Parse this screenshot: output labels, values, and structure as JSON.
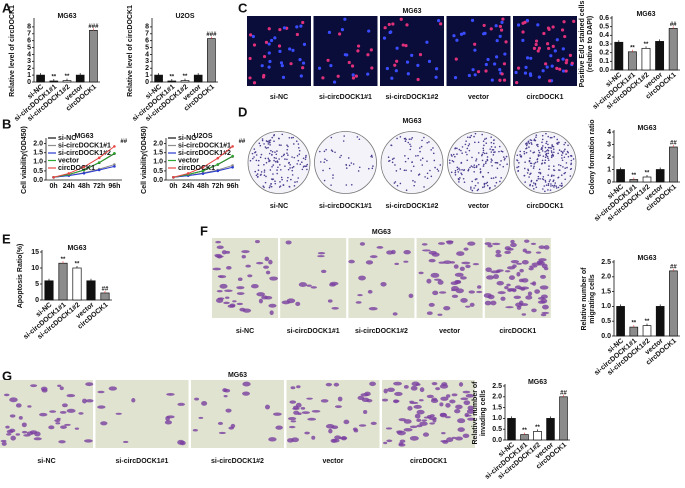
{
  "panel_letters": [
    "A",
    "B",
    "C",
    "D",
    "E",
    "F",
    "G"
  ],
  "chart_data": [
    {
      "type": "bar",
      "title": "MG63",
      "y_label": [
        "Relative level of circDOCK1"
      ],
      "categories": [
        "si-NC",
        "si-circDOCK1#1",
        "si-circDOCK1#2",
        "vector",
        "circDOCK1"
      ],
      "values": [
        1,
        0.15,
        0.2,
        1,
        7.5
      ],
      "colors": [
        "#111111",
        "#111111",
        "#ffffff",
        "#111111",
        "#8c8c8c"
      ],
      "ylim": [
        0,
        9
      ],
      "yticks": [
        0,
        1,
        2,
        3,
        4,
        5,
        6,
        7,
        8
      ],
      "annotations": [
        {
          "category": 1,
          "text": "**"
        },
        {
          "category": 2,
          "text": "**"
        },
        {
          "category": 4,
          "text": "###"
        }
      ]
    },
    {
      "type": "bar",
      "title": "U2OS",
      "y_label": [
        "Relative level of circDOCK1"
      ],
      "categories": [
        "si-NC",
        "si-circDOCK1#1",
        "si-circDOCK1#2",
        "vector",
        "circDOCK1"
      ],
      "values": [
        1,
        0.15,
        0.2,
        1,
        6.3
      ],
      "colors": [
        "#111111",
        "#111111",
        "#ffffff",
        "#111111",
        "#8c8c8c"
      ],
      "ylim": [
        0,
        9
      ],
      "yticks": [
        0,
        1,
        2,
        3,
        4,
        5,
        6,
        7,
        8
      ],
      "annotations": [
        {
          "category": 1,
          "text": "**"
        },
        {
          "category": 2,
          "text": "**"
        },
        {
          "category": 4,
          "text": "###"
        }
      ]
    },
    {
      "type": "line",
      "title": "MG63",
      "y_label": [
        "Cell viability(OD450)"
      ],
      "categories": [
        "0h",
        "24h",
        "48h",
        "72h",
        "96h"
      ],
      "ylim": [
        0,
        2.2
      ],
      "yticks": [
        {
          "value": 0,
          "label": "0.0"
        },
        {
          "value": 0.5,
          "label": "0.5"
        },
        {
          "value": 1,
          "label": "1.0"
        },
        {
          "value": 1.5,
          "label": "1.5"
        },
        {
          "value": 2,
          "label": "2.0"
        }
      ],
      "legend": "upper left",
      "series": [
        {
          "name": "si-NC",
          "color": "#111111",
          "values": [
            0.15,
            0.3,
            0.55,
            0.95,
            1.45
          ]
        },
        {
          "name": "si-circDOCK1#1",
          "color": "#8c8c8c",
          "values": [
            0.15,
            0.25,
            0.4,
            0.6,
            0.85
          ]
        },
        {
          "name": "si-circDOCK1#2",
          "color": "#2a3bd1",
          "values": [
            0.15,
            0.24,
            0.37,
            0.55,
            0.75
          ]
        },
        {
          "name": "vector",
          "color": "#2fa82f",
          "values": [
            0.15,
            0.3,
            0.56,
            0.96,
            1.47
          ]
        },
        {
          "name": "circDOCK1",
          "color": "#e84545",
          "values": [
            0.15,
            0.36,
            0.72,
            1.22,
            1.85
          ]
        }
      ],
      "annotations": [
        {
          "category": 4,
          "text": "##"
        }
      ]
    },
    {
      "type": "line",
      "title": "U2OS",
      "y_label": [
        "Cell viability(OD450)"
      ],
      "categories": [
        "0h",
        "24h",
        "48h",
        "72h",
        "96h"
      ],
      "ylim": [
        0,
        2.2
      ],
      "yticks": [
        {
          "value": 0,
          "label": "0.0"
        },
        {
          "value": 0.5,
          "label": "0.5"
        },
        {
          "value": 1,
          "label": "1.0"
        },
        {
          "value": 1.5,
          "label": "1.5"
        },
        {
          "value": 2,
          "label": "2.0"
        }
      ],
      "legend": "upper left",
      "series": [
        {
          "name": "si-NC",
          "color": "#111111",
          "values": [
            0.15,
            0.3,
            0.5,
            0.85,
            1.3
          ]
        },
        {
          "name": "si-circDOCK1#1",
          "color": "#8c8c8c",
          "values": [
            0.15,
            0.25,
            0.38,
            0.55,
            0.8
          ]
        },
        {
          "name": "si-circDOCK1#2",
          "color": "#2a3bd1",
          "values": [
            0.15,
            0.24,
            0.35,
            0.5,
            0.7
          ]
        },
        {
          "name": "vector",
          "color": "#2fa82f",
          "values": [
            0.15,
            0.3,
            0.5,
            0.86,
            1.32
          ]
        },
        {
          "name": "circDOCK1",
          "color": "#e84545",
          "values": [
            0.15,
            0.36,
            0.7,
            1.2,
            1.85
          ]
        }
      ],
      "annotations": [
        {
          "category": 4,
          "text": "##"
        }
      ]
    },
    {
      "type": "bar",
      "title": "MG63",
      "y_label": [
        "Positive EdU stained cells",
        "(relative to DAPI)"
      ],
      "categories": [
        "si-NC",
        "si-circDOCK1#1",
        "si-circDOCK1#2",
        "vector",
        "circDOCK1"
      ],
      "values": [
        0.32,
        0.21,
        0.25,
        0.33,
        0.48
      ],
      "colors": [
        "#111111",
        "#8c8c8c",
        "#ffffff",
        "#111111",
        "#8c8c8c"
      ],
      "ylim": [
        0,
        0.6
      ],
      "yticks": [
        {
          "value": 0,
          "label": "0.0"
        },
        0.1,
        0.2,
        0.3,
        0.4,
        0.5,
        0.6
      ],
      "annotations": [
        {
          "category": 1,
          "text": "**"
        },
        {
          "category": 2,
          "text": "**"
        },
        {
          "category": 4,
          "text": "##"
        }
      ]
    },
    {
      "type": "bar",
      "title": "MG63",
      "y_label": [
        "Colony formation ratio"
      ],
      "categories": [
        "si-NC",
        "si-circDOCK1#1",
        "si-circDOCK1#2",
        "vector",
        "circDOCK1"
      ],
      "values": [
        1,
        0.2,
        0.4,
        1,
        2.8
      ],
      "colors": [
        "#111111",
        "#8c8c8c",
        "#ffffff",
        "#111111",
        "#8c8c8c"
      ],
      "ylim": [
        0,
        4
      ],
      "yticks": [
        0,
        1,
        2,
        3,
        4
      ],
      "annotations": [
        {
          "category": 1,
          "text": "**"
        },
        {
          "category": 2,
          "text": "**"
        },
        {
          "category": 4,
          "text": "##"
        }
      ]
    },
    {
      "type": "bar",
      "title": "MG63",
      "y_label": [
        "Apoptosis Ratio(%)"
      ],
      "categories": [
        "si-NC",
        "si-circDOCK1#1",
        "si-circDOCK1#2",
        "vector",
        "circDOCK1"
      ],
      "values": [
        6,
        11.5,
        10,
        6,
        2.2
      ],
      "colors": [
        "#111111",
        "#8c8c8c",
        "#ffffff",
        "#111111",
        "#8c8c8c"
      ],
      "ylim": [
        0,
        15
      ],
      "yticks": [
        0,
        5,
        10,
        15
      ],
      "annotations": [
        {
          "category": 1,
          "text": "**"
        },
        {
          "category": 2,
          "text": "**"
        },
        {
          "category": 4,
          "text": "##"
        }
      ]
    },
    {
      "type": "bar",
      "title": "MG63",
      "y_label": [
        "Relative number of",
        "migrating cells"
      ],
      "categories": [
        "si-NC",
        "si-circDOCK1#1",
        "si-circDOCK1#2",
        "vector",
        "circDOCK1"
      ],
      "values": [
        1,
        0.3,
        0.35,
        1,
        2.2
      ],
      "colors": [
        "#111111",
        "#8c8c8c",
        "#ffffff",
        "#111111",
        "#8c8c8c"
      ],
      "ylim": [
        0,
        2.5
      ],
      "yticks": [
        {
          "value": 0,
          "label": "0.0"
        },
        0.5,
        {
          "value": 1,
          "label": "1.0"
        },
        1.5,
        {
          "value": 2,
          "label": "2.0"
        },
        2.5
      ],
      "annotations": [
        {
          "category": 1,
          "text": "**"
        },
        {
          "category": 2,
          "text": "**"
        },
        {
          "category": 4,
          "text": "##"
        }
      ]
    },
    {
      "type": "bar",
      "title": "MG63",
      "y_label": [
        "Relative number of",
        "invading cells"
      ],
      "categories": [
        "si-NC",
        "si-circDOCK1#1",
        "si-circDOCK1#2",
        "vector",
        "circDOCK1"
      ],
      "values": [
        1,
        0.25,
        0.4,
        1,
        2
      ],
      "colors": [
        "#111111",
        "#8c8c8c",
        "#ffffff",
        "#111111",
        "#8c8c8c"
      ],
      "ylim": [
        0,
        2.5
      ],
      "yticks": [
        {
          "value": 0,
          "label": "0.0"
        },
        0.5,
        {
          "value": 1,
          "label": "1.0"
        },
        1.5,
        {
          "value": 2,
          "label": "2.0"
        },
        2.5
      ],
      "annotations": [
        {
          "category": 1,
          "text": "**"
        },
        {
          "category": 2,
          "text": "**"
        },
        {
          "category": 4,
          "text": "##"
        }
      ]
    }
  ],
  "image_panels": [
    {
      "title": "MG63",
      "style": "fluorescence",
      "labels": [
        "si-NC",
        "si-circDOCK1#1",
        "si-circDOCK1#2",
        "vector",
        "circDOCK1"
      ]
    },
    {
      "title": "MG63",
      "style": "colony",
      "labels": [
        "si-NC",
        "si-circDOCK1#1",
        "si-circDOCK1#2",
        "vector",
        "circDOCK1"
      ]
    },
    {
      "title": "MG63",
      "style": "stain",
      "labels": [
        "si-NC",
        "si-circDOCK1#1",
        "si-circDOCK1#2",
        "vector",
        "circDOCK1"
      ]
    },
    {
      "title": "MG63",
      "style": "stain",
      "labels": [
        "si-NC",
        "si-circDOCK1#1",
        "si-circDOCK1#2",
        "vector",
        "circDOCK1"
      ]
    }
  ]
}
